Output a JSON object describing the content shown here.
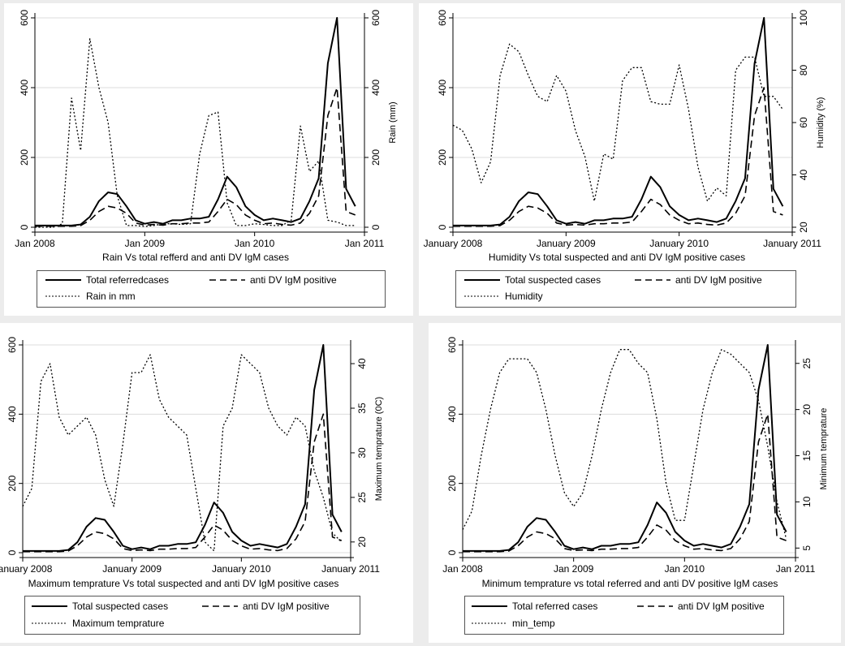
{
  "chart_data": [
    {
      "type": "line",
      "title": "Rain Vs total refferd and anti DV IgM cases",
      "xticks": [
        "Jan 2008",
        "Jan 2009",
        "Jan 2010",
        "Jan 2011"
      ],
      "yticks_left": [
        "0",
        "200",
        "400",
        "600"
      ],
      "yticks_right": [
        "0",
        "200",
        "400",
        "600"
      ],
      "ylabel_right": "Rain (mm)",
      "ylim_left": [
        0,
        600
      ],
      "ylim_right": [
        0,
        600
      ],
      "x": [
        "2008-01",
        "2008-02",
        "2008-03",
        "2008-04",
        "2008-05",
        "2008-06",
        "2008-07",
        "2008-08",
        "2008-09",
        "2008-10",
        "2008-11",
        "2008-12",
        "2009-01",
        "2009-02",
        "2009-03",
        "2009-04",
        "2009-05",
        "2009-06",
        "2009-07",
        "2009-08",
        "2009-09",
        "2009-10",
        "2009-11",
        "2009-12",
        "2010-01",
        "2010-02",
        "2010-03",
        "2010-04",
        "2010-05",
        "2010-06",
        "2010-07",
        "2010-08",
        "2010-09",
        "2010-10",
        "2010-11",
        "2010-12"
      ],
      "series": [
        {
          "name": "Total referredcases",
          "style": "solid",
          "axis": "left",
          "values": [
            5,
            5,
            5,
            5,
            5,
            8,
            30,
            75,
            100,
            95,
            60,
            20,
            10,
            15,
            10,
            20,
            20,
            25,
            25,
            30,
            80,
            145,
            115,
            60,
            35,
            20,
            25,
            20,
            15,
            25,
            75,
            140,
            470,
            600,
            110,
            60
          ]
        },
        {
          "name": "anti DV IgM positive",
          "style": "dashed",
          "axis": "left",
          "values": [
            3,
            3,
            3,
            3,
            3,
            5,
            20,
            45,
            60,
            55,
            40,
            12,
            6,
            8,
            6,
            10,
            10,
            12,
            12,
            15,
            45,
            80,
            65,
            35,
            20,
            10,
            12,
            8,
            6,
            12,
            40,
            90,
            320,
            400,
            45,
            35
          ]
        },
        {
          "name": "Rain in mm",
          "style": "dotted",
          "axis": "right",
          "values": [
            0,
            0,
            0,
            10,
            370,
            220,
            540,
            400,
            300,
            90,
            5,
            5,
            2,
            5,
            10,
            10,
            8,
            10,
            210,
            320,
            330,
            70,
            5,
            5,
            10,
            8,
            5,
            5,
            20,
            290,
            160,
            190,
            20,
            15,
            5,
            5
          ]
        }
      ],
      "legend": "bottom"
    },
    {
      "type": "line",
      "title": "Humidity Vs total suspected and anti DV IgM positive cases",
      "xticks": [
        "January 2008",
        "January 2009",
        "January 2010",
        "January 2011"
      ],
      "yticks_left": [
        "0",
        "200",
        "400",
        "600"
      ],
      "yticks_right": [
        "20",
        "40",
        "60",
        "80",
        "100"
      ],
      "ylabel_right": "Humidity (%)",
      "ylim_left": [
        0,
        600
      ],
      "ylim_right": [
        20,
        100
      ],
      "x": [
        "2008-01",
        "2008-02",
        "2008-03",
        "2008-04",
        "2008-05",
        "2008-06",
        "2008-07",
        "2008-08",
        "2008-09",
        "2008-10",
        "2008-11",
        "2008-12",
        "2009-01",
        "2009-02",
        "2009-03",
        "2009-04",
        "2009-05",
        "2009-06",
        "2009-07",
        "2009-08",
        "2009-09",
        "2009-10",
        "2009-11",
        "2009-12",
        "2010-01",
        "2010-02",
        "2010-03",
        "2010-04",
        "2010-05",
        "2010-06",
        "2010-07",
        "2010-08",
        "2010-09",
        "2010-10",
        "2010-11",
        "2010-12"
      ],
      "series": [
        {
          "name": "Total  suspected cases",
          "style": "solid",
          "axis": "left",
          "values": [
            5,
            5,
            5,
            5,
            5,
            8,
            30,
            75,
            100,
            95,
            60,
            20,
            10,
            15,
            10,
            20,
            20,
            25,
            25,
            30,
            80,
            145,
            115,
            60,
            35,
            20,
            25,
            20,
            15,
            25,
            75,
            140,
            470,
            600,
            110,
            60
          ]
        },
        {
          "name": "anti DV IgM positive",
          "style": "dashed",
          "axis": "left",
          "values": [
            3,
            3,
            3,
            3,
            3,
            5,
            20,
            45,
            60,
            55,
            40,
            12,
            6,
            8,
            6,
            10,
            10,
            12,
            12,
            15,
            45,
            80,
            65,
            35,
            20,
            10,
            12,
            8,
            6,
            12,
            40,
            90,
            320,
            400,
            45,
            35
          ]
        },
        {
          "name": "Humidity",
          "style": "dotted",
          "axis": "right",
          "values": [
            59,
            57,
            50,
            37,
            45,
            78,
            90,
            87,
            78,
            70,
            68,
            78,
            72,
            57,
            47,
            30,
            48,
            46,
            76,
            81,
            81,
            68,
            67,
            67,
            82,
            65,
            43,
            30,
            35,
            32,
            80,
            85,
            85,
            70,
            70,
            65
          ]
        }
      ],
      "legend": "bottom"
    },
    {
      "type": "line",
      "title": "Maximum temprature Vs total suspected and anti DV IgM positive cases",
      "xticks": [
        "January 2008",
        "January 2009",
        "January 2010",
        "January 2011"
      ],
      "yticks_left": [
        "0",
        "200",
        "400",
        "600"
      ],
      "yticks_right": [
        "20",
        "25",
        "30",
        "35",
        "40"
      ],
      "ylabel_right": "Maximum temprature (0C)",
      "ylim_left": [
        0,
        600
      ],
      "ylim_right": [
        18.8,
        42.1
      ],
      "x": [
        "2008-01",
        "2008-02",
        "2008-03",
        "2008-04",
        "2008-05",
        "2008-06",
        "2008-07",
        "2008-08",
        "2008-09",
        "2008-10",
        "2008-11",
        "2008-12",
        "2009-01",
        "2009-02",
        "2009-03",
        "2009-04",
        "2009-05",
        "2009-06",
        "2009-07",
        "2009-08",
        "2009-09",
        "2009-10",
        "2009-11",
        "2009-12",
        "2010-01",
        "2010-02",
        "2010-03",
        "2010-04",
        "2010-05",
        "2010-06",
        "2010-07",
        "2010-08",
        "2010-09",
        "2010-10",
        "2010-11",
        "2010-12"
      ],
      "series": [
        {
          "name": "Total suspected cases",
          "style": "solid",
          "axis": "left",
          "values": [
            5,
            5,
            5,
            5,
            5,
            8,
            30,
            75,
            100,
            95,
            60,
            20,
            10,
            15,
            10,
            20,
            20,
            25,
            25,
            30,
            80,
            145,
            115,
            60,
            35,
            20,
            25,
            20,
            15,
            25,
            75,
            140,
            470,
            600,
            110,
            60
          ]
        },
        {
          "name": "anti DV IgM positive",
          "style": "dashed",
          "axis": "left",
          "values": [
            3,
            3,
            3,
            3,
            3,
            5,
            20,
            45,
            60,
            55,
            40,
            12,
            6,
            8,
            6,
            10,
            10,
            12,
            12,
            15,
            45,
            80,
            65,
            35,
            20,
            10,
            12,
            8,
            6,
            12,
            40,
            90,
            320,
            400,
            45,
            35
          ]
        },
        {
          "name": "Maximum  temprature",
          "style": "dotted",
          "axis": "right",
          "values": [
            24,
            26,
            38,
            40,
            34,
            32,
            33,
            34,
            32,
            27,
            24,
            31,
            39,
            39,
            41,
            36,
            34,
            33,
            32,
            26,
            20,
            19,
            33,
            35,
            41,
            40,
            39,
            35,
            33,
            32,
            34,
            33,
            28,
            25,
            21,
            20
          ]
        }
      ],
      "legend": "bottom"
    },
    {
      "type": "line",
      "title": "Minimum temprature vs total referred and anti DV positive IgM cases",
      "xticks": [
        "Jan 2008",
        "Jan 2009",
        "Jan 2010",
        "Jan 2011"
      ],
      "yticks_left": [
        "0",
        "200",
        "400",
        "600"
      ],
      "yticks_right": [
        "5",
        "10",
        "15",
        "20",
        "25"
      ],
      "ylabel_right": "Minimum temprature",
      "ylim_left": [
        0,
        600
      ],
      "ylim_right": [
        4.5,
        27
      ],
      "x": [
        "2008-01",
        "2008-02",
        "2008-03",
        "2008-04",
        "2008-05",
        "2008-06",
        "2008-07",
        "2008-08",
        "2008-09",
        "2008-10",
        "2008-11",
        "2008-12",
        "2009-01",
        "2009-02",
        "2009-03",
        "2009-04",
        "2009-05",
        "2009-06",
        "2009-07",
        "2009-08",
        "2009-09",
        "2009-10",
        "2009-11",
        "2009-12",
        "2010-01",
        "2010-02",
        "2010-03",
        "2010-04",
        "2010-05",
        "2010-06",
        "2010-07",
        "2010-08",
        "2010-09",
        "2010-10",
        "2010-11",
        "2010-12"
      ],
      "series": [
        {
          "name": "Total referred cases",
          "style": "solid",
          "axis": "left",
          "values": [
            5,
            5,
            5,
            5,
            5,
            8,
            30,
            75,
            100,
            95,
            60,
            20,
            10,
            15,
            10,
            20,
            20,
            25,
            25,
            30,
            80,
            145,
            115,
            60,
            35,
            20,
            25,
            20,
            15,
            25,
            75,
            140,
            470,
            600,
            110,
            60
          ]
        },
        {
          "name": "anti DV IgM positive",
          "style": "dashed",
          "axis": "left",
          "values": [
            3,
            3,
            3,
            3,
            3,
            5,
            20,
            45,
            60,
            55,
            40,
            12,
            6,
            8,
            6,
            10,
            10,
            12,
            12,
            15,
            45,
            80,
            65,
            35,
            20,
            10,
            12,
            8,
            6,
            12,
            40,
            90,
            320,
            400,
            45,
            35
          ]
        },
        {
          "name": "min_temp",
          "style": "dotted",
          "axis": "right",
          "values": [
            7,
            9,
            15,
            20,
            24,
            25.5,
            25.5,
            25.5,
            24,
            20,
            15,
            11,
            9.5,
            11,
            15,
            20,
            24,
            26.5,
            26.5,
            25,
            24,
            19,
            12,
            8,
            8,
            14,
            20,
            24,
            26.5,
            26,
            25,
            24,
            21,
            16,
            10,
            6
          ]
        }
      ],
      "legend": "bottom"
    }
  ]
}
